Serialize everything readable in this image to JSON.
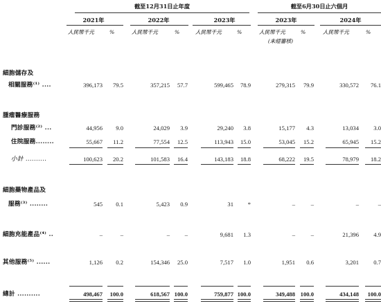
{
  "header": {
    "group_year": "截至12月31日止年度",
    "group_half": "截至6月30日止六個月",
    "years": [
      "2021年",
      "2022年",
      "2023年",
      "2023年",
      "2024年"
    ],
    "unit": "人民幣千元",
    "pct": "%",
    "unaudited": "(未經審核)"
  },
  "rows": {
    "cell_storage": {
      "label1": "細胞儲存及",
      "label2": "相關服務⁽¹⁾ ....",
      "values": [
        "396,173",
        "79.5",
        "357,215",
        "57.7",
        "599,465",
        "78.9",
        "279,315",
        "79.9",
        "330,572",
        "76.1"
      ]
    },
    "tumor_header": {
      "label": "腫瘤醫療服務"
    },
    "outpatient": {
      "label": "門診服務⁽²⁾ ...",
      "values": [
        "44,956",
        "9.0",
        "24,029",
        "3.9",
        "29,240",
        "3.8",
        "15,177",
        "4.3",
        "13,034",
        "3.0"
      ]
    },
    "inpatient": {
      "label": "住院服務........",
      "values": [
        "55,667",
        "11.2",
        "77,554",
        "12.5",
        "113,943",
        "15.0",
        "53,045",
        "15.2",
        "65,945",
        "15.2"
      ]
    },
    "subtotal": {
      "label": "小計 ..........",
      "values": [
        "100,623",
        "20.2",
        "101,583",
        "16.4",
        "143,183",
        "18.8",
        "68,222",
        "19.5",
        "78,979",
        "18.2"
      ]
    },
    "cell_drug": {
      "label1": "細胞藥物產品及",
      "label2": "服務⁽³⁾ ........",
      "values": [
        "545",
        "0.1",
        "5,423",
        "0.9",
        "31",
        "*",
        "–",
        "–",
        "–",
        "–"
      ]
    },
    "cell_energy": {
      "label": "細胞充能產品⁽⁴⁾ ..",
      "values": [
        "–",
        "–",
        "–",
        "–",
        "9,681",
        "1.3",
        "–",
        "–",
        "21,396",
        "4.9"
      ]
    },
    "other": {
      "label": "其他服務⁽⁵⁾ ......",
      "values": [
        "1,126",
        "0.2",
        "154,346",
        "25.0",
        "7,517",
        "1.0",
        "1,951",
        "0.6",
        "3,201",
        "0.7"
      ]
    },
    "total": {
      "label": "總計 ..........",
      "values": [
        "498,467",
        "100.0",
        "618,567",
        "100.0",
        "759,877",
        "100.0",
        "349,488",
        "100.0",
        "434,148",
        "100.0"
      ]
    }
  }
}
